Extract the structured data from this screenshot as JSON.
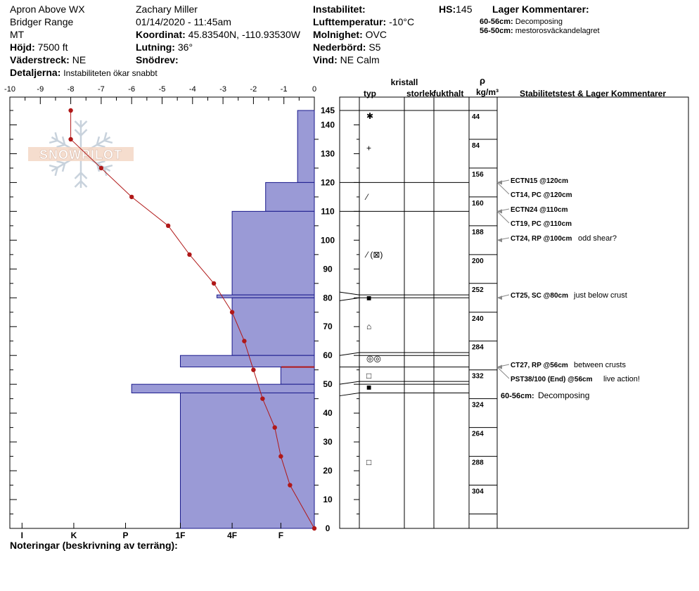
{
  "header": {
    "location": "Apron Above WX",
    "range": "Bridger Range",
    "state": "MT",
    "elevation_label": "Höjd:",
    "elevation_value": "7500 ft",
    "aspect_label": "Väderstreck:",
    "aspect_value": "NE",
    "details_label": "Detaljerna:",
    "details_value": "Instabiliteten ökar snabbt",
    "observer": "Zachary Miller",
    "datetime": "01/14/2020 - 11:45am",
    "coord_label": "Koordinat:",
    "coord_value": "45.83540N, -110.93530W",
    "slope_label": "Lutning:",
    "slope_value": "36°",
    "snowdrift_label": "Snödrev:",
    "instability_label": "Instabilitet:",
    "airtemp_label": "Lufttemperatur:",
    "airtemp_value": "-10°C",
    "cloud_label": "Molnighet:",
    "cloud_value": "OVC",
    "precip_label": "Nederbörd:",
    "precip_value": "S5",
    "wind_label": "Vind:",
    "wind_value": "NE Calm",
    "hs_label": "HS:",
    "hs_value": "145",
    "layer_comments_label": "Lager Kommentarer:",
    "layer_comment_1_range": "60-56cm:",
    "layer_comment_1_text": "Decomposing",
    "layer_comment_2_range": "56-50cm:",
    "layer_comment_2_text": "mestorosväckandelagret"
  },
  "footer": {
    "notes_label": "Noteringar (beskrivning av terräng):"
  },
  "logo_text": "SNOWPILOT",
  "columns": {
    "crystal": "kristall",
    "type": "typ",
    "size": "storlek",
    "moisture": "fukthalt",
    "rho": "ρ",
    "density_unit": "kg/m³",
    "stability": "Stabilitetstest & Lager Kommentarer"
  },
  "colors": {
    "hardness_fill": "#9a9ad6",
    "hardness_stroke": "#1a1a8c",
    "temp_line": "#b01818",
    "arrow": "#888888"
  },
  "chart_data": {
    "type": "area",
    "temp_axis": {
      "ticks": [
        "-10",
        "-9",
        "-8",
        "-7",
        "-6",
        "-5",
        "-4",
        "-3",
        "-2",
        "-1",
        "0"
      ],
      "range": [
        -10,
        0
      ]
    },
    "hardness_axis": {
      "ticks": [
        "I",
        "K",
        "P",
        "1F",
        "4F",
        "F"
      ]
    },
    "height_axis": {
      "ticks": [
        "145",
        "140",
        "130",
        "120",
        "110",
        "100",
        "90",
        "80",
        "70",
        "60",
        "50",
        "40",
        "30",
        "20",
        "10",
        "0"
      ],
      "range": [
        0,
        145
      ]
    },
    "temperature_profile": [
      {
        "height": 145,
        "temp": -8.0
      },
      {
        "height": 135,
        "temp": -8.0
      },
      {
        "height": 125,
        "temp": -7.0
      },
      {
        "height": 115,
        "temp": -6.0
      },
      {
        "height": 105,
        "temp": -4.8
      },
      {
        "height": 95,
        "temp": -4.1
      },
      {
        "height": 85,
        "temp": -3.3
      },
      {
        "height": 75,
        "temp": -2.7
      },
      {
        "height": 65,
        "temp": -2.3
      },
      {
        "height": 55,
        "temp": -2.0
      },
      {
        "height": 45,
        "temp": -1.7
      },
      {
        "height": 35,
        "temp": -1.3
      },
      {
        "height": 25,
        "temp": -1.1
      },
      {
        "height": 15,
        "temp": -0.8
      },
      {
        "height": 0,
        "temp": 0.0
      }
    ],
    "hardness_layers": [
      {
        "top": 145,
        "bottom": 120,
        "hardness": -0.55
      },
      {
        "top": 120,
        "bottom": 110,
        "hardness": -1.6
      },
      {
        "top": 110,
        "bottom": 81,
        "hardness": -2.7
      },
      {
        "top": 81,
        "bottom": 80,
        "hardness": -3.2
      },
      {
        "top": 80,
        "bottom": 60,
        "hardness": -2.7
      },
      {
        "top": 60,
        "bottom": 56,
        "hardness": -4.4
      },
      {
        "top": 56,
        "bottom": 50,
        "hardness": -1.1
      },
      {
        "top": 50,
        "bottom": 47,
        "hardness": -6.0
      },
      {
        "top": 47,
        "bottom": 0,
        "hardness": -4.4
      }
    ],
    "layer_boundaries": [
      145,
      120,
      110,
      81,
      80,
      61,
      60,
      56,
      51,
      50,
      47,
      0
    ],
    "crystal_types": [
      {
        "height": 143,
        "symbol": "✱"
      },
      {
        "height": 132,
        "symbol": "+"
      },
      {
        "height": 115,
        "symbol": "⁄"
      },
      {
        "height": 95,
        "symbol": "⁄ (⊠)"
      },
      {
        "height": 80,
        "symbol": "■"
      },
      {
        "height": 70,
        "symbol": "⌂"
      },
      {
        "height": 59,
        "symbol": "◎◎"
      },
      {
        "height": 53,
        "symbol": "□"
      },
      {
        "height": 49,
        "symbol": "■"
      },
      {
        "height": 23,
        "symbol": "□"
      }
    ],
    "densities": [
      {
        "label": "44",
        "top": 145,
        "bottom": 135
      },
      {
        "label": "84",
        "top": 135,
        "bottom": 125
      },
      {
        "label": "156",
        "top": 125,
        "bottom": 115
      },
      {
        "label": "160",
        "top": 115,
        "bottom": 105
      },
      {
        "label": "188",
        "top": 105,
        "bottom": 95
      },
      {
        "label": "200",
        "top": 95,
        "bottom": 85
      },
      {
        "label": "252",
        "top": 85,
        "bottom": 75
      },
      {
        "label": "240",
        "top": 75,
        "bottom": 65
      },
      {
        "label": "284",
        "top": 65,
        "bottom": 55
      },
      {
        "label": "332",
        "top": 55,
        "bottom": 45
      },
      {
        "label": "324",
        "top": 45,
        "bottom": 35
      },
      {
        "label": "264",
        "top": 35,
        "bottom": 25
      },
      {
        "label": "288",
        "top": 25,
        "bottom": 15
      },
      {
        "label": "304",
        "top": 15,
        "bottom": 5
      }
    ],
    "stability_tests": [
      {
        "height": 120,
        "test": "ECTN15 @120cm",
        "comment": ""
      },
      {
        "height": 120,
        "test": "CT14, PC @120cm",
        "comment": ""
      },
      {
        "height": 110,
        "test": "ECTN24 @110cm",
        "comment": ""
      },
      {
        "height": 110,
        "test": "CT19, PC @110cm",
        "comment": ""
      },
      {
        "height": 100,
        "test": "CT24, RP @100cm",
        "comment": "odd shear?"
      },
      {
        "height": 80,
        "test": "CT25, SC @80cm",
        "comment": "just below crust"
      },
      {
        "height": 56,
        "test": "CT27, RP @56cm",
        "comment": "between crusts"
      },
      {
        "height": 56,
        "test": "PST38/100 (End) @56cm",
        "comment": "live action!"
      }
    ],
    "layer_comments": [
      {
        "range": "60-56cm:",
        "text": "Decomposing"
      }
    ]
  }
}
